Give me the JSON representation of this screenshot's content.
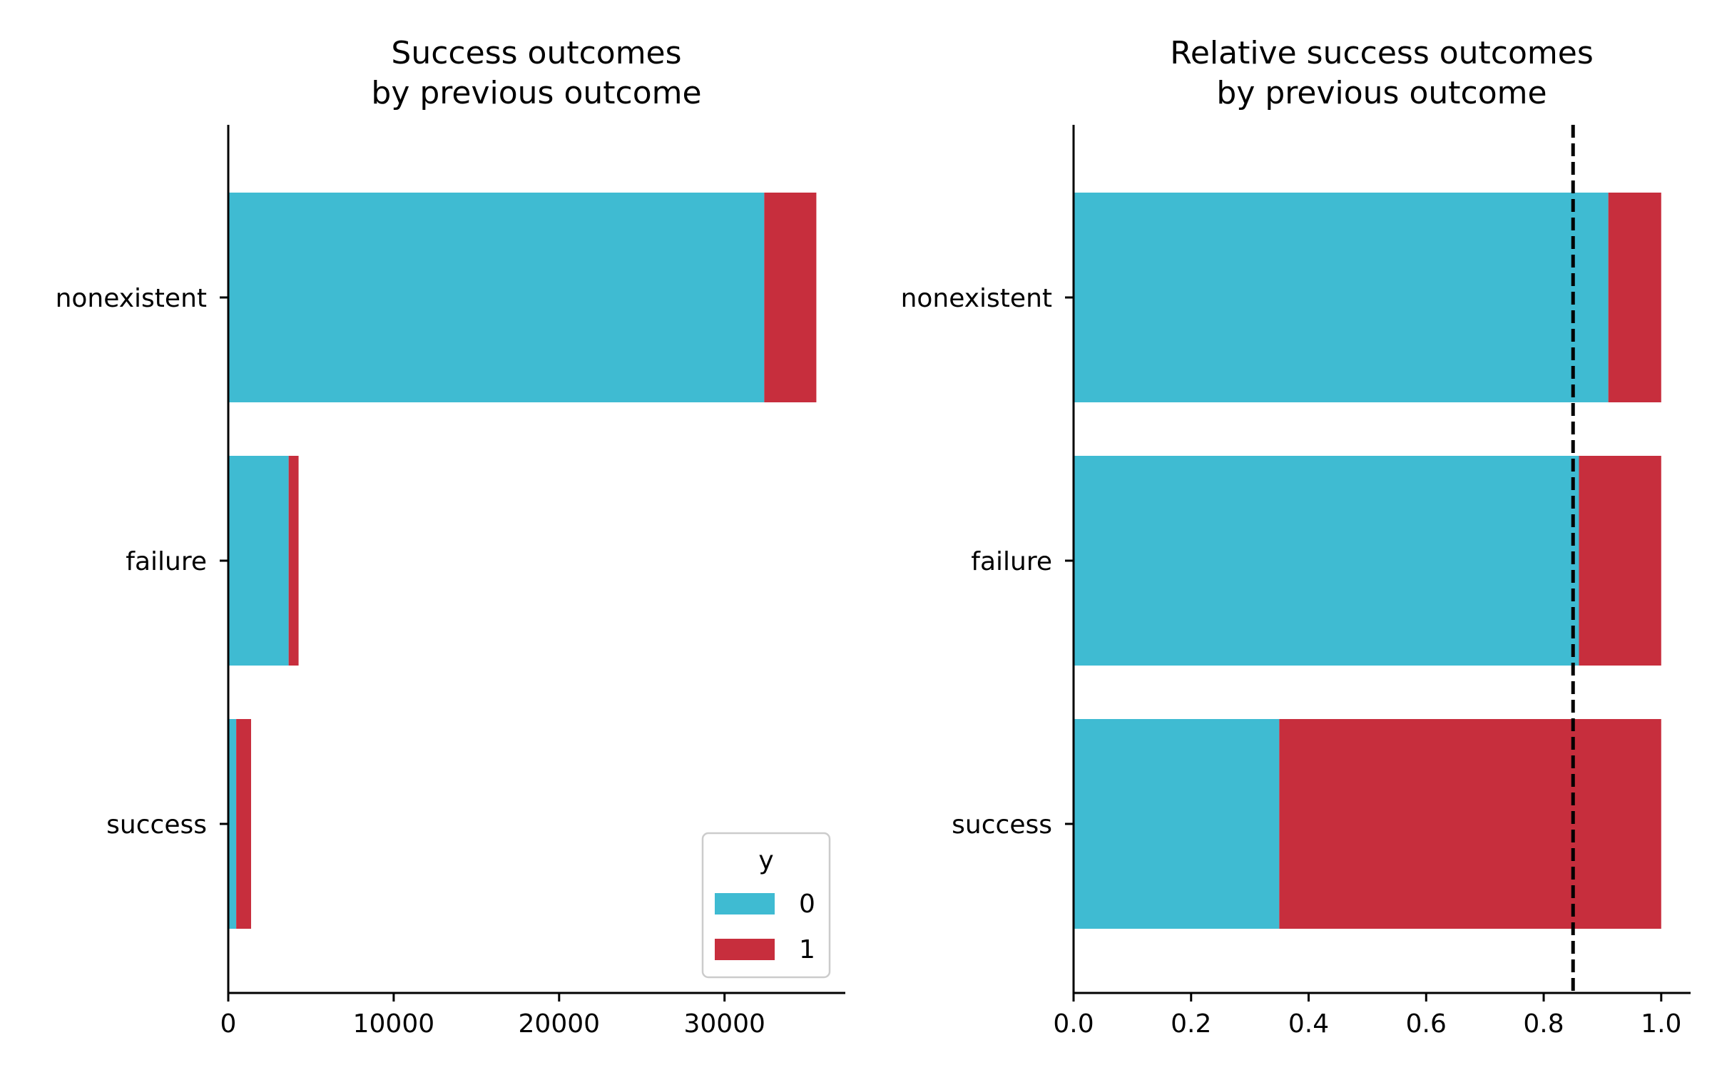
{
  "colors": {
    "y0": "#3fbbd2",
    "y1": "#c72e3d",
    "axis": "#000000",
    "reference_line": "#000000"
  },
  "chart_data": [
    {
      "type": "bar",
      "orientation": "horizontal",
      "stacked": true,
      "title": "Success outcomes\nby previous outcome",
      "title_lines": [
        "Success outcomes",
        "by previous outcome"
      ],
      "categories": [
        "nonexistent",
        "failure",
        "success"
      ],
      "series": [
        {
          "name": "0",
          "values": [
            32400,
            3650,
            480
          ]
        },
        {
          "name": "1",
          "values": [
            3150,
            600,
            900
          ]
        }
      ],
      "xlim": [
        0,
        37300
      ],
      "xticks": [
        0,
        10000,
        20000,
        30000
      ],
      "xtick_labels": [
        "0",
        "10000",
        "20000",
        "30000"
      ],
      "legend": {
        "title": "y",
        "entries": [
          "0",
          "1"
        ],
        "placement": "lower-right"
      },
      "grid": false
    },
    {
      "type": "bar",
      "orientation": "horizontal",
      "stacked": true,
      "title": "Relative success outcomes\nby previous outcome",
      "title_lines": [
        "Relative success outcomes",
        "by previous outcome"
      ],
      "categories": [
        "nonexistent",
        "failure",
        "success"
      ],
      "series": [
        {
          "name": "0",
          "values": [
            0.91,
            0.86,
            0.35
          ]
        },
        {
          "name": "1",
          "values": [
            0.09,
            0.14,
            0.65
          ]
        }
      ],
      "xlim": [
        0,
        1.05
      ],
      "xticks": [
        0,
        0.2,
        0.4,
        0.6,
        0.8,
        1.0
      ],
      "xtick_labels": [
        "0.0",
        "0.2",
        "0.4",
        "0.6",
        "0.8",
        "1.0"
      ],
      "reference_line": {
        "x": 0.85,
        "style": "dashed"
      },
      "grid": false
    }
  ]
}
